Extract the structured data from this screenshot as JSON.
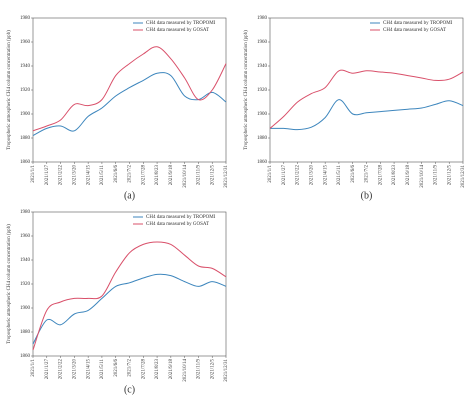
{
  "chart_data": [
    {
      "type": "line",
      "caption": "(a)",
      "ylabel": "Tropospheric atmospheric CH4 column concentration (ppb)",
      "categories": [
        "2021/1/1",
        "2021/1/27",
        "2021/2/22",
        "2021/3/20",
        "2021/4/15",
        "2021/5/11",
        "2021/6/6",
        "2021/7/2",
        "2021/7/28",
        "2021/8/23",
        "2021/9/18",
        "2021/10/14",
        "2021/11/9",
        "2021/12/5",
        "2021/12/31"
      ],
      "series": [
        {
          "name": "CH4 data measured by TROPOMI",
          "color": "#3d86bd",
          "values": [
            1882,
            1888,
            1890,
            1886,
            1898,
            1905,
            1915,
            1922,
            1928,
            1934,
            1932,
            1915,
            1912,
            1918,
            1910
          ]
        },
        {
          "name": "CH4 data measured by GOSAT",
          "color": "#d9506a",
          "values": [
            1886,
            1890,
            1895,
            1908,
            1907,
            1912,
            1932,
            1942,
            1950,
            1956,
            1946,
            1930,
            1912,
            1920,
            1942
          ]
        }
      ],
      "ylim": [
        1860,
        1980
      ],
      "yticks": [
        1860,
        1880,
        1900,
        1920,
        1940,
        1960,
        1980
      ]
    },
    {
      "type": "line",
      "caption": "(b)",
      "ylabel": "Tropospheric atmospheric CH4 column concentration (ppb)",
      "categories": [
        "2021/1/1",
        "2021/1/27",
        "2021/2/22",
        "2021/3/20",
        "2021/4/15",
        "2021/5/11",
        "2021/6/6",
        "2021/7/2",
        "2021/7/28",
        "2021/8/23",
        "2021/9/18",
        "2021/10/14",
        "2021/11/9",
        "2021/12/5",
        "2021/12/31"
      ],
      "series": [
        {
          "name": "CH4 data measured by TROPOMI",
          "color": "#3d86bd",
          "values": [
            1888,
            1888,
            1887,
            1889,
            1897,
            1912,
            1900,
            1901,
            1902,
            1903,
            1904,
            1905,
            1908,
            1911,
            1907
          ]
        },
        {
          "name": "CH4 data measured by GOSAT",
          "color": "#d9506a",
          "values": [
            1888,
            1898,
            1910,
            1917,
            1922,
            1936,
            1934,
            1936,
            1935,
            1934,
            1932,
            1930,
            1928,
            1929,
            1935
          ]
        }
      ],
      "ylim": [
        1860,
        1980
      ],
      "yticks": [
        1860,
        1880,
        1900,
        1920,
        1940,
        1960,
        1980
      ]
    },
    {
      "type": "line",
      "caption": "(c)",
      "ylabel": "Tropospheric atmospheric CH4 column concentration (ppb)",
      "categories": [
        "2021/1/1",
        "2021/1/27",
        "2021/2/22",
        "2021/3/20",
        "2021/4/15",
        "2021/5/11",
        "2021/6/6",
        "2021/7/2",
        "2021/7/28",
        "2021/8/23",
        "2021/9/18",
        "2021/10/14",
        "2021/11/9",
        "2021/12/5",
        "2021/12/31"
      ],
      "series": [
        {
          "name": "CH4 data measured by TROPOMI",
          "color": "#3d86bd",
          "values": [
            1870,
            1890,
            1886,
            1895,
            1898,
            1908,
            1918,
            1921,
            1925,
            1928,
            1927,
            1922,
            1918,
            1922,
            1918
          ]
        },
        {
          "name": "CH4 data measured by GOSAT",
          "color": "#d9506a",
          "values": [
            1865,
            1898,
            1905,
            1908,
            1908,
            1910,
            1930,
            1946,
            1953,
            1955,
            1953,
            1944,
            1935,
            1933,
            1926
          ]
        }
      ],
      "ylim": [
        1860,
        1980
      ],
      "yticks": [
        1860,
        1880,
        1900,
        1920,
        1940,
        1960,
        1980
      ]
    }
  ]
}
